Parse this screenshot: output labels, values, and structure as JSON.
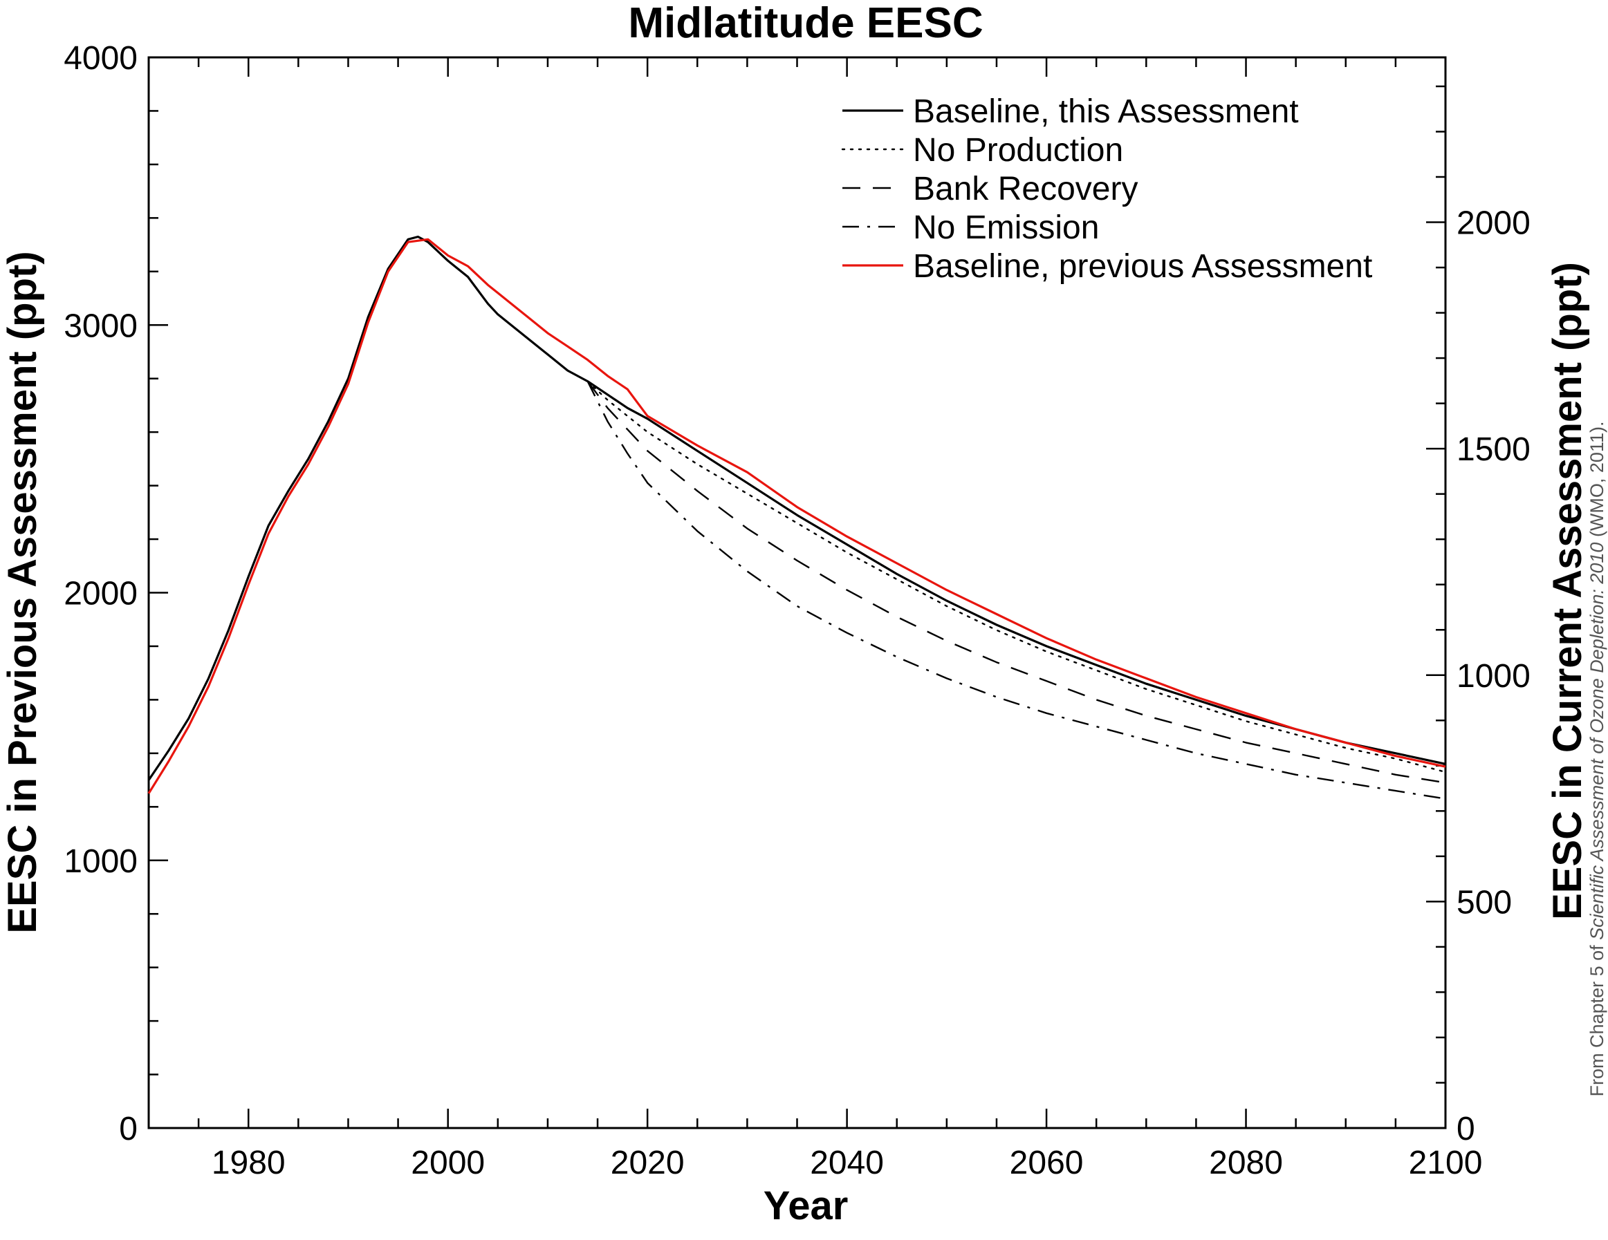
{
  "chart_data": {
    "type": "line",
    "title": "Midlatitude EESC",
    "xlabel": "Year",
    "ylabel": "EESC in Previous Assessment (ppt)",
    "y2label": "EESC in Current Assessment (ppt)",
    "xlim": [
      1970,
      2100
    ],
    "ylim": [
      0,
      4000
    ],
    "y2lim": [
      0,
      2364
    ],
    "x_ticks": [
      "1980",
      "2000",
      "2020",
      "2040",
      "2060",
      "2080",
      "2100"
    ],
    "y_ticks": [
      "0",
      "1000",
      "2000",
      "3000",
      "4000"
    ],
    "y2_ticks": [
      "0",
      "500",
      "1000",
      "1500",
      "2000"
    ],
    "grid": false,
    "legend_position": "top-right",
    "series": [
      {
        "name": "Baseline, this Assessment",
        "color": "#000000",
        "style": "solid",
        "x": [
          1970,
          1972,
          1974,
          1976,
          1978,
          1980,
          1982,
          1984,
          1986,
          1988,
          1990,
          1992,
          1994,
          1996,
          1997,
          1998,
          2000,
          2002,
          2004,
          2005,
          2006,
          2008,
          2010,
          2012,
          2014,
          2016,
          2018,
          2020,
          2025,
          2030,
          2035,
          2040,
          2045,
          2050,
          2055,
          2060,
          2065,
          2070,
          2075,
          2080,
          2085,
          2090,
          2095,
          2100
        ],
        "y": [
          1300,
          1410,
          1530,
          1680,
          1860,
          2060,
          2250,
          2380,
          2500,
          2640,
          2800,
          3030,
          3210,
          3320,
          3330,
          3310,
          3240,
          3180,
          3080,
          3040,
          3010,
          2950,
          2890,
          2830,
          2790,
          2740,
          2690,
          2650,
          2530,
          2410,
          2290,
          2180,
          2070,
          1970,
          1880,
          1800,
          1730,
          1660,
          1600,
          1540,
          1490,
          1440,
          1400,
          1360
        ]
      },
      {
        "name": "No Production",
        "color": "#000000",
        "style": "dotted",
        "x": [
          2014,
          2016,
          2018,
          2020,
          2025,
          2030,
          2035,
          2040,
          2045,
          2050,
          2055,
          2060,
          2065,
          2070,
          2075,
          2080,
          2085,
          2090,
          2095,
          2100
        ],
        "y": [
          2790,
          2720,
          2660,
          2600,
          2480,
          2370,
          2260,
          2150,
          2050,
          1950,
          1860,
          1780,
          1710,
          1640,
          1580,
          1520,
          1470,
          1420,
          1380,
          1330
        ]
      },
      {
        "name": "Bank Recovery",
        "color": "#000000",
        "style": "dashed",
        "x": [
          2014,
          2016,
          2018,
          2020,
          2025,
          2030,
          2035,
          2040,
          2045,
          2050,
          2055,
          2060,
          2065,
          2070,
          2075,
          2080,
          2085,
          2090,
          2095,
          2100
        ],
        "y": [
          2790,
          2690,
          2610,
          2530,
          2380,
          2240,
          2120,
          2010,
          1910,
          1820,
          1740,
          1670,
          1600,
          1540,
          1490,
          1440,
          1400,
          1360,
          1320,
          1290
        ]
      },
      {
        "name": "No Emission",
        "color": "#000000",
        "style": "dashdot",
        "x": [
          2014,
          2016,
          2018,
          2020,
          2025,
          2030,
          2035,
          2040,
          2045,
          2050,
          2055,
          2060,
          2065,
          2070,
          2075,
          2080,
          2085,
          2090,
          2095,
          2100
        ],
        "y": [
          2790,
          2640,
          2520,
          2410,
          2230,
          2080,
          1950,
          1850,
          1760,
          1680,
          1610,
          1550,
          1500,
          1450,
          1400,
          1360,
          1320,
          1290,
          1260,
          1230
        ]
      },
      {
        "name": "Baseline, previous Assessment",
        "color": "#e8150e",
        "style": "solid",
        "x": [
          1970,
          1972,
          1974,
          1976,
          1978,
          1980,
          1982,
          1984,
          1986,
          1988,
          1990,
          1992,
          1994,
          1996,
          1998,
          2000,
          2002,
          2004,
          2005,
          2006,
          2008,
          2010,
          2012,
          2014,
          2016,
          2018,
          2019,
          2020,
          2025,
          2030,
          2035,
          2040,
          2045,
          2050,
          2055,
          2060,
          2065,
          2070,
          2075,
          2080,
          2085,
          2090,
          2095,
          2100
        ],
        "y": [
          1250,
          1370,
          1500,
          1650,
          1830,
          2030,
          2220,
          2360,
          2480,
          2620,
          2780,
          3010,
          3200,
          3310,
          3320,
          3260,
          3220,
          3150,
          3120,
          3090,
          3030,
          2970,
          2920,
          2870,
          2810,
          2760,
          2710,
          2660,
          2550,
          2450,
          2320,
          2210,
          2110,
          2010,
          1920,
          1830,
          1750,
          1680,
          1610,
          1550,
          1490,
          1440,
          1390,
          1350
        ]
      }
    ]
  },
  "credit": {
    "prefix": "From Chapter 5 of ",
    "italic": "Scientific Assessment of Ozone Depletion: 2010",
    "suffix": " (WMO, 2011)."
  }
}
